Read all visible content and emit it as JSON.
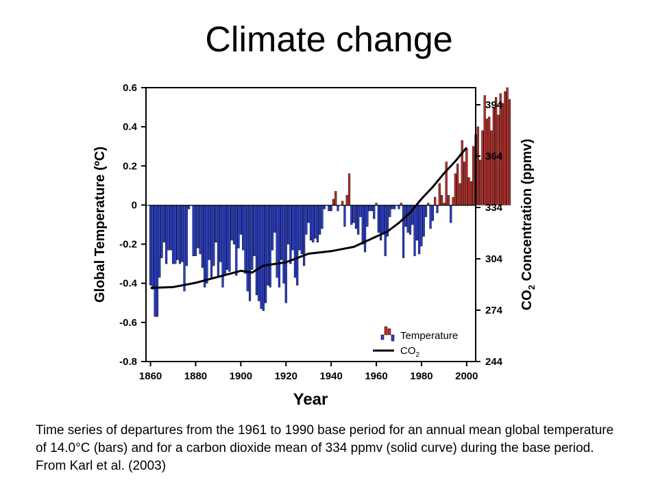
{
  "slide": {
    "title": "Climate change",
    "caption": "Time series of departures from the 1961 to 1990 base period for an annual mean global temperature of 14.0°C (bars) and for a carbon dioxide mean of 334 ppmv (solid curve) during the base period. From Karl et al. (2003)"
  },
  "chart_data": {
    "type": "bar",
    "xlabel": "Year",
    "ylabel": "Global Temperature (ºC)",
    "y2label_parts": [
      "CO",
      "2",
      " Concentration (ppmv)"
    ],
    "xlim": [
      1858,
      2004
    ],
    "ylim": [
      -0.8,
      0.6
    ],
    "y2lim": [
      244,
      404
    ],
    "x_ticks": [
      1860,
      1880,
      1900,
      1920,
      1940,
      1960,
      1980,
      2000
    ],
    "y_ticks": [
      0.6,
      0.4,
      0.2,
      0,
      -0.2,
      -0.4,
      -0.6,
      -0.8
    ],
    "y_tick_labels": [
      "0.6",
      "0.4",
      "0.2",
      "0",
      "-0.2",
      "-0.4",
      "-0.6",
      "-0.8"
    ],
    "y2_ticks": [
      394,
      364,
      334,
      304,
      274,
      244
    ],
    "legend": [
      {
        "label": "Temperature",
        "kind": "bars"
      },
      {
        "label_parts": [
          "CO",
          "2"
        ],
        "kind": "line"
      }
    ],
    "legend_position": "lower-right",
    "colors": {
      "positive": "#c0302a",
      "negative": "#2a3fd6",
      "co2_line": "#000000"
    },
    "temperature": {
      "start_year": 1860,
      "values": [
        -0.41,
        -0.43,
        -0.57,
        -0.57,
        -0.37,
        -0.27,
        -0.19,
        -0.3,
        -0.23,
        -0.23,
        -0.3,
        -0.3,
        -0.28,
        -0.3,
        -0.29,
        -0.44,
        -0.31,
        -0.02,
        0.0,
        -0.26,
        -0.26,
        -0.22,
        -0.25,
        -0.32,
        -0.42,
        -0.4,
        -0.28,
        -0.37,
        -0.31,
        -0.19,
        -0.37,
        -0.29,
        -0.42,
        -0.36,
        -0.33,
        -0.34,
        -0.18,
        -0.2,
        -0.36,
        -0.22,
        -0.15,
        -0.23,
        -0.35,
        -0.44,
        -0.49,
        -0.33,
        -0.26,
        -0.46,
        -0.49,
        -0.53,
        -0.54,
        -0.5,
        -0.41,
        -0.42,
        -0.23,
        -0.14,
        -0.37,
        -0.42,
        -0.28,
        -0.4,
        -0.5,
        -0.2,
        -0.3,
        -0.23,
        -0.37,
        -0.41,
        -0.23,
        -0.25,
        -0.31,
        -0.15,
        -0.09,
        -0.18,
        -0.19,
        -0.17,
        -0.19,
        -0.15,
        -0.12,
        -0.02,
        0.0,
        -0.03,
        -0.03,
        0.03,
        0.07,
        -0.03,
        0.0,
        0.02,
        -0.11,
        0.05,
        0.16,
        -0.1,
        -0.09,
        -0.12,
        -0.15,
        -0.06,
        -0.2,
        -0.24,
        -0.11,
        -0.03,
        -0.03,
        -0.07,
        0.01,
        -0.14,
        -0.18,
        -0.15,
        -0.26,
        -0.16,
        -0.06,
        -0.02,
        -0.02,
        0.0,
        -0.02,
        0.01,
        -0.27,
        -0.11,
        -0.14,
        -0.15,
        -0.1,
        -0.26,
        -0.18,
        -0.25,
        -0.21,
        -0.16,
        -0.06,
        0.01,
        -0.12,
        -0.08,
        0.04,
        -0.04,
        0.11,
        0.05,
        0.01,
        0.22,
        0.05,
        -0.09,
        0.04,
        0.16,
        0.21,
        0.11,
        0.33,
        0.22,
        0.29,
        0.14,
        0.12,
        0.3,
        0.36,
        0.4,
        0.23,
        0.38,
        0.56,
        0.44,
        0.45,
        0.38,
        0.5,
        0.55,
        0.46,
        0.57,
        0.52,
        0.58,
        0.6,
        0.54
      ]
    },
    "co2": {
      "x": [
        1860,
        1870,
        1880,
        1890,
        1900,
        1905,
        1910,
        1920,
        1930,
        1940,
        1950,
        1955,
        1960,
        1965,
        1970,
        1975,
        1980,
        1985,
        1990,
        1995,
        2000
      ],
      "y": [
        287,
        287.5,
        290,
        293.5,
        297,
        296,
        300,
        302,
        307,
        308.5,
        311,
        314,
        317,
        320,
        325,
        331,
        339,
        346,
        354,
        361,
        369
      ]
    }
  }
}
